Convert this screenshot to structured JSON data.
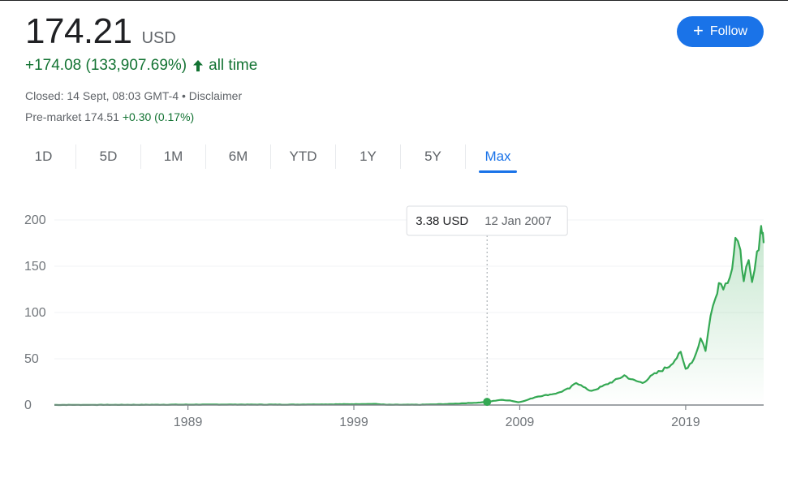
{
  "quote": {
    "price": "174.21",
    "currency": "USD",
    "change": "+174.08 (133,907.69%)",
    "change_period": "all time",
    "closed_text": "Closed: 14 Sept, 08:03 GMT-4 • Disclaimer",
    "premarket_label": "Pre-market 174.51",
    "premarket_change": "+0.30 (0.17%)"
  },
  "follow_button": {
    "label": "Follow"
  },
  "tabs": [
    {
      "label": "1D"
    },
    {
      "label": "5D"
    },
    {
      "label": "1M"
    },
    {
      "label": "6M"
    },
    {
      "label": "YTD"
    },
    {
      "label": "1Y"
    },
    {
      "label": "5Y"
    },
    {
      "label": "Max",
      "active": true
    }
  ],
  "colors": {
    "up": "#137333",
    "line": "#34a853",
    "accent": "#1a73e8"
  },
  "tooltip": {
    "value": "3.38 USD",
    "date": "12 Jan 2007",
    "x": 2007.03,
    "y": 3.38
  },
  "chart_data": {
    "type": "area",
    "xlabel": "",
    "ylabel": "",
    "xlim": [
      1980.95,
      2023.7
    ],
    "ylim": [
      0,
      200
    ],
    "yticks": [
      0,
      50,
      100,
      150,
      200
    ],
    "xticks": [
      1989,
      1999,
      2009,
      2019
    ],
    "grid": "horizontal",
    "series": [
      {
        "x": [
          1980.95,
          1985,
          1989,
          1991,
          1995,
          1999,
          2000.2,
          2001,
          2003,
          2004.5,
          2005.5,
          2006.5,
          2007.03,
          2007.8,
          2008.4,
          2008.9,
          2009.3,
          2010,
          2010.7,
          2011.3,
          2012,
          2012.4,
          2012.7,
          2013.2,
          2013.6,
          2014.2,
          2014.8,
          2015.3,
          2015.8,
          2016.4,
          2017,
          2017.6,
          2018,
          2018.7,
          2019.0,
          2019.5,
          2019.9,
          2020.2,
          2020.5,
          2020.8,
          2021.0,
          2021.4,
          2021.8,
          2022.0,
          2022.3,
          2022.5,
          2022.8,
          2023.0,
          2023.3,
          2023.5,
          2023.6,
          2023.7
        ],
        "y": [
          0.1,
          0.2,
          0.4,
          0.5,
          0.4,
          0.9,
          1.2,
          0.3,
          0.3,
          1.0,
          1.8,
          2.6,
          3.38,
          5.5,
          5.0,
          3.0,
          4.5,
          9.0,
          11.0,
          13.0,
          18.0,
          24.0,
          22.0,
          15.0,
          17.0,
          22.0,
          27.0,
          32.0,
          27.0,
          24.0,
          32.0,
          38.0,
          42.0,
          56.0,
          39.0,
          50.0,
          72.0,
          60.0,
          95.0,
          120.0,
          132.0,
          130.0,
          150.0,
          178.0,
          162.0,
          140.0,
          150.0,
          130.0,
          160.0,
          190.0,
          193.0,
          175.0
        ]
      }
    ]
  }
}
